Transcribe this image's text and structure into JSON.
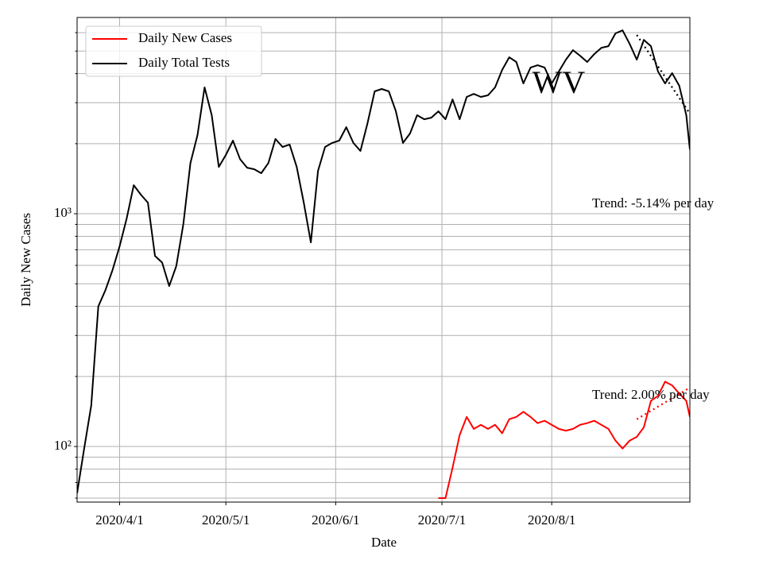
{
  "chart_data": {
    "type": "line",
    "ylabel": "Daily New Cases",
    "xlabel": "Date",
    "x": [
      "2020/3/20",
      "2020/3/22",
      "2020/3/24",
      "2020/3/26",
      "2020/3/28",
      "2020/3/30",
      "2020/4/1",
      "2020/4/3",
      "2020/4/5",
      "2020/4/7",
      "2020/4/9",
      "2020/4/11",
      "2020/4/13",
      "2020/4/15",
      "2020/4/17",
      "2020/4/19",
      "2020/4/21",
      "2020/4/23",
      "2020/4/25",
      "2020/4/27",
      "2020/4/29",
      "2020/5/1",
      "2020/5/3",
      "2020/5/5",
      "2020/5/7",
      "2020/5/9",
      "2020/5/11",
      "2020/5/13",
      "2020/5/15",
      "2020/5/17",
      "2020/5/19",
      "2020/5/21",
      "2020/5/23",
      "2020/5/25",
      "2020/5/27",
      "2020/5/29",
      "2020/5/31",
      "2020/6/2",
      "2020/6/4",
      "2020/6/6",
      "2020/6/8",
      "2020/6/10",
      "2020/6/12",
      "2020/6/14",
      "2020/6/16",
      "2020/6/18",
      "2020/6/20",
      "2020/6/22",
      "2020/6/24",
      "2020/6/26",
      "2020/6/28",
      "2020/6/30",
      "2020/7/2",
      "2020/7/4",
      "2020/7/6",
      "2020/7/8",
      "2020/7/10",
      "2020/7/12",
      "2020/7/14",
      "2020/7/16",
      "2020/7/18",
      "2020/7/20",
      "2020/7/22",
      "2020/7/24",
      "2020/7/26",
      "2020/7/28",
      "2020/7/30",
      "2020/8/1",
      "2020/8/3",
      "2020/8/5",
      "2020/8/7",
      "2020/8/9",
      "2020/8/11",
      "2020/8/13",
      "2020/8/15",
      "2020/8/17",
      "2020/8/19",
      "2020/8/21",
      "2020/8/23",
      "2020/8/25",
      "2020/8/27",
      "2020/8/29",
      "2020/8/31",
      "2020/9/2",
      "2020/9/4",
      "2020/9/6",
      "2020/9/8",
      "2020/9/9"
    ],
    "series": [
      {
        "name": "Daily New Cases",
        "color": "#ff0000",
        "values": [
          null,
          null,
          null,
          null,
          null,
          null,
          null,
          null,
          null,
          null,
          null,
          null,
          null,
          null,
          null,
          null,
          null,
          null,
          null,
          null,
          null,
          null,
          null,
          null,
          null,
          null,
          null,
          null,
          null,
          null,
          null,
          null,
          null,
          null,
          null,
          null,
          null,
          null,
          null,
          null,
          null,
          null,
          null,
          null,
          null,
          null,
          null,
          null,
          null,
          null,
          null,
          60,
          60,
          81,
          112,
          134,
          119,
          124,
          119,
          124,
          114,
          131,
          134,
          141,
          134,
          126,
          129,
          124,
          119,
          117,
          119,
          124,
          126,
          129,
          124,
          119,
          106,
          98,
          106,
          110,
          121,
          157,
          165,
          190,
          183,
          169,
          157,
          134
        ]
      },
      {
        "name": "Daily Total Tests",
        "color": "#000000",
        "values": [
          63,
          98,
          150,
          400,
          470,
          573,
          725,
          955,
          1327,
          1208,
          1116,
          659,
          617,
          489,
          596,
          903,
          1652,
          2178,
          3489,
          2650,
          1589,
          1790,
          2062,
          1718,
          1577,
          1553,
          1494,
          1652,
          2095,
          1936,
          1983,
          1589,
          1116,
          753,
          1528,
          1936,
          2015,
          2062,
          2355,
          2015,
          1862,
          2449,
          3357,
          3436,
          3357,
          2754,
          2015,
          2213,
          2650,
          2547,
          2588,
          2754,
          2547,
          3098,
          2547,
          3176,
          3273,
          3176,
          3228,
          3489,
          4150,
          4700,
          4487,
          3631,
          4246,
          4345,
          4246,
          3631,
          4083,
          4592,
          5047,
          4775,
          4487,
          4853,
          5164,
          5248,
          5957,
          6138,
          5370,
          4592,
          5585,
          5248,
          4083,
          3631,
          4018,
          3548,
          2650,
          1888
        ]
      }
    ],
    "trend_lines": [
      {
        "label": "Trend: -5.14% per day",
        "color": "#000000",
        "x": [
          "2020/8/25",
          "2020/9/9"
        ],
        "values": [
          5864,
          2692
        ]
      },
      {
        "label": "Trend: 2.00% per day",
        "color": "#ff0000",
        "x": [
          "2020/8/25",
          "2020/9/9"
        ],
        "values": [
          131,
          179
        ]
      }
    ],
    "annotation": "WV",
    "xlim": [
      "2020/3/20",
      "2020/9/9"
    ],
    "xticks": [
      "2020/4/1",
      "2020/5/1",
      "2020/6/1",
      "2020/7/1",
      "2020/8/1"
    ],
    "ylim": [
      57.7,
      6970
    ],
    "log_y": true,
    "yticks": [
      {
        "value": 100,
        "label": "10²"
      },
      {
        "value": 1000,
        "label": "10³"
      }
    ],
    "yminorticks": [
      60,
      70,
      80,
      90,
      200,
      300,
      400,
      500,
      600,
      700,
      800,
      900,
      2000,
      3000,
      4000,
      5000,
      6000
    ],
    "grid": true,
    "legend": "upper left"
  }
}
